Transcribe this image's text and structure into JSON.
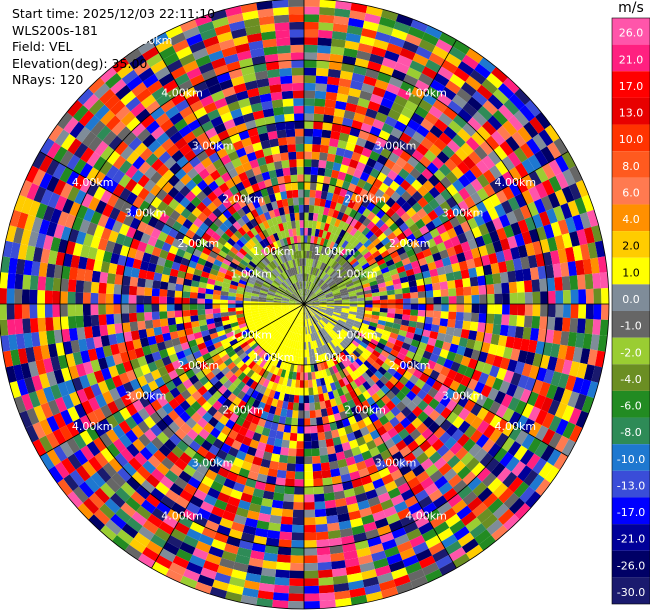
{
  "info": {
    "start_time": "Start time: 2025/12/03 22:11:10",
    "station": "WLS200s-181",
    "field": "Field: VEL",
    "elevation": "Elevation(deg): 35.00",
    "nrays": "NRays: 120"
  },
  "colorbar": {
    "unit": "m/s",
    "ticks": [
      "26.0",
      "21.0",
      "17.0",
      "13.0",
      "10.0",
      "8.0",
      "6.0",
      "4.0",
      "2.0",
      "1.0",
      "0.0",
      "-1.0",
      "-2.0",
      "-4.0",
      "-6.0",
      "-8.0",
      "-10.0",
      "-13.0",
      "-17.0",
      "-21.0",
      "-26.0",
      "-30.0"
    ],
    "colors": [
      "#ff55aa",
      "#ff2080",
      "#ff0000",
      "#e80000",
      "#ff3300",
      "#ff5a1f",
      "#ff7a50",
      "#ff9000",
      "#ffcc00",
      "#ffff00",
      "#7f8c99",
      "#666666",
      "#9acd32",
      "#6b8e23",
      "#228b22",
      "#2e8b57",
      "#1e78d0",
      "#3a4dd8",
      "#0000ff",
      "#000099",
      "#000066",
      "#1a1a6e"
    ]
  },
  "chart_data": {
    "type": "heatmap",
    "projection": "polar PPI scan",
    "field": "VEL",
    "units": "m/s",
    "n_rays": 120,
    "elevation_deg": 35.0,
    "ring_labels": [
      "1.00km",
      "2.00km",
      "3.00km",
      "4.00km",
      "5.00km"
    ],
    "ring_label_angles_deg": [
      30,
      60,
      120,
      150,
      210,
      240,
      300,
      330
    ],
    "ring_label_positions": {
      "30": [
        "1.00km",
        "2.00km",
        "3.00km",
        "4.00km"
      ],
      "60": [
        "1.00km",
        "2.00km",
        "3.00km",
        "4.00km"
      ],
      "120": [
        "1.00km",
        "2.00km",
        "3.00km",
        "4.00km"
      ],
      "150": [
        "1.00km",
        "2.00km",
        "3.00km",
        "4.00km"
      ],
      "210": [
        "1.00km",
        "2.00km",
        "3.00km",
        "4.00km"
      ],
      "240": [
        "1.00km",
        "2.00km",
        "3.00km",
        "4.00km"
      ],
      "300": [
        "1.00km",
        "2.00km",
        "3.00km",
        "4.00km"
      ],
      "330": [
        "1.00km",
        "2.00km",
        "3.00km",
        "4.00km",
        "5.00km"
      ]
    },
    "color_levels": [
      -30,
      -26,
      -21,
      -17,
      -13,
      -10,
      -8,
      -6,
      -4,
      -2,
      -1,
      0,
      1,
      2,
      4,
      6,
      8,
      10,
      13,
      17,
      21,
      26,
      30
    ]
  }
}
